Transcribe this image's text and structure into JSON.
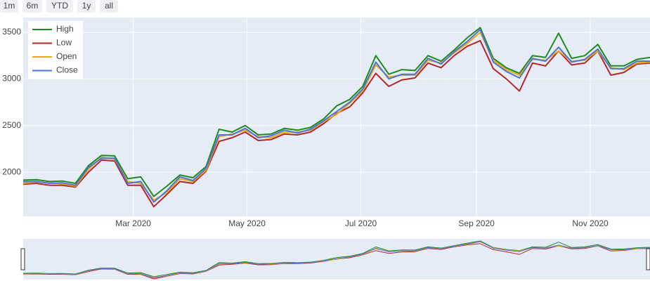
{
  "buttons": [
    "1m",
    "6m",
    "YTD",
    "1y",
    "all"
  ],
  "chart_data": {
    "type": "line",
    "x": [
      "2020-01-02",
      "2020-01-09",
      "2020-01-16",
      "2020-01-23",
      "2020-01-30",
      "2020-02-06",
      "2020-02-13",
      "2020-02-20",
      "2020-02-27",
      "2020-03-05",
      "2020-03-12",
      "2020-03-19",
      "2020-03-26",
      "2020-04-02",
      "2020-04-09",
      "2020-04-16",
      "2020-04-23",
      "2020-04-30",
      "2020-05-07",
      "2020-05-14",
      "2020-05-21",
      "2020-05-28",
      "2020-06-04",
      "2020-06-11",
      "2020-06-18",
      "2020-06-25",
      "2020-07-02",
      "2020-07-09",
      "2020-07-16",
      "2020-07-23",
      "2020-07-30",
      "2020-08-06",
      "2020-08-13",
      "2020-08-20",
      "2020-08-27",
      "2020-09-03",
      "2020-09-10",
      "2020-09-17",
      "2020-09-24",
      "2020-10-01",
      "2020-10-08",
      "2020-10-15",
      "2020-10-22",
      "2020-10-29",
      "2020-11-05",
      "2020-11-12",
      "2020-11-19",
      "2020-11-26",
      "2020-12-03"
    ],
    "series": [
      {
        "name": "High",
        "color": "#1f8a1f",
        "values": [
          1915,
          1920,
          1900,
          1905,
          1880,
          2070,
          2180,
          2175,
          1930,
          1950,
          1740,
          1850,
          1970,
          1940,
          2060,
          2460,
          2430,
          2500,
          2400,
          2410,
          2470,
          2450,
          2480,
          2570,
          2710,
          2780,
          2920,
          3250,
          3050,
          3100,
          3090,
          3250,
          3190,
          3310,
          3440,
          3550,
          3220,
          3120,
          3060,
          3250,
          3230,
          3490,
          3220,
          3250,
          3370,
          3140,
          3140,
          3210,
          3230
        ]
      },
      {
        "name": "Low",
        "color": "#b5272b",
        "values": [
          1870,
          1880,
          1860,
          1860,
          1840,
          2000,
          2130,
          2120,
          1860,
          1860,
          1630,
          1760,
          1900,
          1880,
          2010,
          2330,
          2370,
          2430,
          2340,
          2350,
          2410,
          2400,
          2430,
          2520,
          2630,
          2700,
          2850,
          3060,
          2920,
          2990,
          3010,
          3170,
          3120,
          3250,
          3350,
          3410,
          3110,
          3000,
          2870,
          3170,
          3140,
          3300,
          3150,
          3170,
          3300,
          3040,
          3070,
          3160,
          3170
        ]
      },
      {
        "name": "Open",
        "color": "#e8a90c",
        "values": [
          1880,
          1895,
          1885,
          1875,
          1850,
          2030,
          2160,
          2140,
          1900,
          1880,
          1700,
          1780,
          1930,
          1900,
          2020,
          2380,
          2410,
          2450,
          2380,
          2370,
          2430,
          2430,
          2450,
          2540,
          2620,
          2740,
          2870,
          3150,
          3020,
          3040,
          3040,
          3200,
          3170,
          3280,
          3380,
          3500,
          3200,
          3100,
          3040,
          3210,
          3200,
          3300,
          3190,
          3200,
          3300,
          3120,
          3100,
          3170,
          3180
        ]
      },
      {
        "name": "Close",
        "color": "#4f73d9",
        "values": [
          1898,
          1900,
          1880,
          1885,
          1860,
          2050,
          2150,
          2150,
          1880,
          1900,
          1680,
          1800,
          1950,
          1910,
          2040,
          2400,
          2400,
          2470,
          2370,
          2390,
          2450,
          2420,
          2460,
          2550,
          2650,
          2750,
          2890,
          3180,
          3000,
          3050,
          3050,
          3220,
          3160,
          3290,
          3400,
          3530,
          3180,
          3080,
          3010,
          3220,
          3190,
          3340,
          3180,
          3210,
          3320,
          3110,
          3110,
          3190,
          3190
        ]
      }
    ],
    "xlim": [
      "2020-01-02",
      "2020-12-03"
    ],
    "xticks": [
      {
        "value": "2020-03-01",
        "label": "Mar 2020"
      },
      {
        "value": "2020-05-01",
        "label": "May 2020"
      },
      {
        "value": "2020-07-01",
        "label": "Jul 2020"
      },
      {
        "value": "2020-09-01",
        "label": "Sep 2020"
      },
      {
        "value": "2020-11-01",
        "label": "Nov 2020"
      }
    ],
    "ylim": [
      1526,
      3658
    ],
    "yticks": [
      2000,
      2500,
      3000,
      3500
    ],
    "grid": true,
    "legend": "top-left",
    "rangeslider": true
  }
}
